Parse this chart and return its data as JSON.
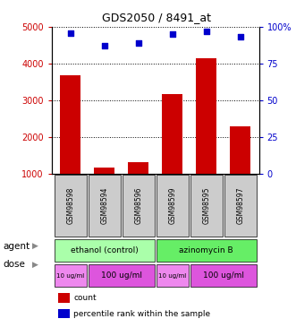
{
  "title": "GDS2050 / 8491_at",
  "samples": [
    "GSM98598",
    "GSM98594",
    "GSM98596",
    "GSM98599",
    "GSM98595",
    "GSM98597"
  ],
  "counts": [
    3680,
    1170,
    1310,
    3160,
    4150,
    2290
  ],
  "percentiles": [
    96,
    87,
    89,
    95,
    97,
    93
  ],
  "ylim_left": [
    1000,
    5000
  ],
  "ylim_right": [
    0,
    100
  ],
  "yticks_left": [
    1000,
    2000,
    3000,
    4000,
    5000
  ],
  "yticks_right": [
    0,
    25,
    50,
    75,
    100
  ],
  "bar_color": "#cc0000",
  "dot_color": "#0000cc",
  "bar_width": 0.6,
  "agent_labels": [
    {
      "text": "ethanol (control)",
      "start": 0,
      "end": 3,
      "color": "#aaffaa"
    },
    {
      "text": "azinomycin B",
      "start": 3,
      "end": 6,
      "color": "#66ee66"
    }
  ],
  "dose_labels": [
    {
      "text": "10 ug/ml",
      "start": 0,
      "end": 1,
      "color": "#ee88ee",
      "fontsize": 5.0
    },
    {
      "text": "100 ug/ml",
      "start": 1,
      "end": 3,
      "color": "#dd55dd",
      "fontsize": 6.5
    },
    {
      "text": "10 ug/ml",
      "start": 3,
      "end": 4,
      "color": "#ee88ee",
      "fontsize": 5.0
    },
    {
      "text": "100 ug/ml",
      "start": 4,
      "end": 6,
      "color": "#dd55dd",
      "fontsize": 6.5
    }
  ],
  "left_color": "#cc0000",
  "right_color": "#0000cc",
  "tick_fontsize": 7,
  "sample_fontsize": 5.5,
  "agent_fontsize": 6.5,
  "legend_fontsize": 6.5
}
